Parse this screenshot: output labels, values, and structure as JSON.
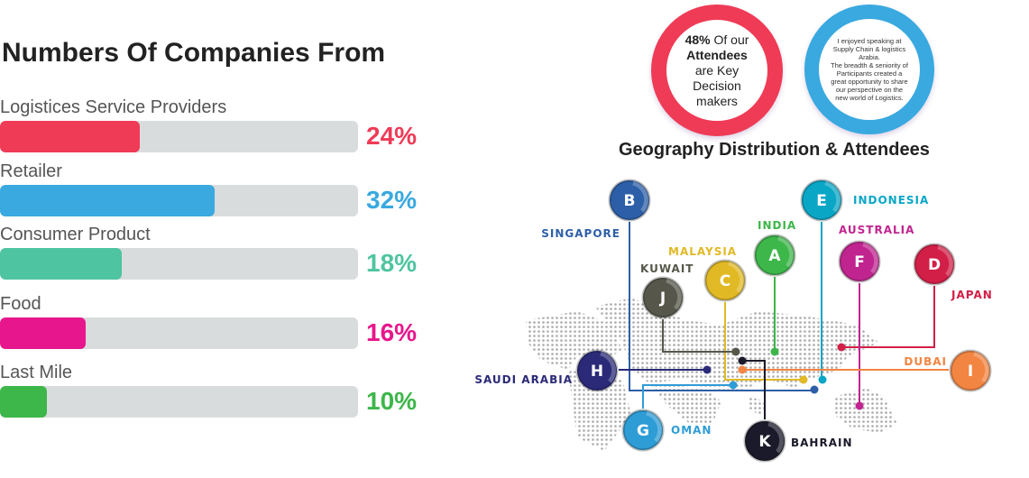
{
  "title": "Numbers Of Companies From",
  "categories": [
    {
      "label": "Logistices Service Providers",
      "percent": "24%",
      "fill": 0.39,
      "color": "#ef3b56"
    },
    {
      "label": "Retailer",
      "percent": "32%",
      "fill": 0.6,
      "color": "#39a9e0"
    },
    {
      "label": "Consumer Product",
      "percent": "18%",
      "fill": 0.34,
      "color": "#4fc4a0"
    },
    {
      "label": "Food",
      "percent": "16%",
      "fill": 0.24,
      "color": "#e8168c"
    },
    {
      "label": "Last Mile",
      "percent": "10%",
      "fill": 0.13,
      "color": "#3db64a"
    }
  ],
  "stat": {
    "pct": "48%",
    "t1": " Of our",
    "t2": "Attendees",
    "t3": "are Key",
    "t4": "Decision",
    "t5": "makers"
  },
  "quote": [
    "I enjoyed speaking at",
    "Supply Chain & logistics",
    "Arabia.",
    "The breadth & seniority of",
    "Participants created a",
    "great opportunity to share",
    "our perspective on the",
    "new world of Logistics."
  ],
  "geo_title": "Geography Distribution & Attendees",
  "countries": [
    {
      "letter": "A",
      "name": "INDIA",
      "color": "#3db64a"
    },
    {
      "letter": "B",
      "name": "SINGAPORE",
      "color": "#2d5fa8"
    },
    {
      "letter": "C",
      "name": "MALAYSIA",
      "color": "#e1b925"
    },
    {
      "letter": "D",
      "name": "JAPAN",
      "color": "#d21f47"
    },
    {
      "letter": "E",
      "name": "INDONESIA",
      "color": "#09a6c6"
    },
    {
      "letter": "F",
      "name": "AUSTRALIA",
      "color": "#c0258f"
    },
    {
      "letter": "G",
      "name": "OMAN",
      "color": "#2e9dd6"
    },
    {
      "letter": "H",
      "name": "SAUDI ARABIA",
      "color": "#2a2a78"
    },
    {
      "letter": "I",
      "name": "DUBAI",
      "color": "#f38542"
    },
    {
      "letter": "J",
      "name": "KUWAIT",
      "color": "#56574a"
    },
    {
      "letter": "K",
      "name": "BAHRAIN",
      "color": "#1a1a2a"
    }
  ]
}
